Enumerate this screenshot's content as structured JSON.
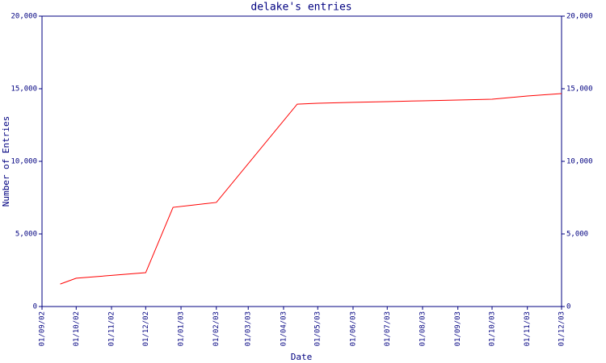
{
  "chart_data": {
    "type": "line",
    "title": "delake's entries",
    "x_label": "Date",
    "y_label": "Number of Entries",
    "x": [
      "17/09/02",
      "01/10/02",
      "01/12/02",
      "25/12/02",
      "01/02/03",
      "13/04/03",
      "01/05/03",
      "01/06/03",
      "01/07/03",
      "01/08/03",
      "01/09/03",
      "01/10/03",
      "01/11/03",
      "01/12/03"
    ],
    "series": [
      {
        "name": "Entries",
        "color": "#ff0000",
        "values": [
          1550,
          1950,
          2330,
          6830,
          7170,
          13940,
          14000,
          14060,
          14110,
          14170,
          14220,
          14280,
          14500,
          14670
        ]
      }
    ],
    "xlim": [
      "01/09/02",
      "01/12/03"
    ],
    "xticks": [
      "01/09/02",
      "01/10/02",
      "01/11/02",
      "01/12/02",
      "01/01/03",
      "01/02/03",
      "01/03/03",
      "01/04/03",
      "01/05/03",
      "01/06/03",
      "01/07/03",
      "01/08/03",
      "01/09/03",
      "01/10/03",
      "01/11/03",
      "01/12/03"
    ],
    "ylim": [
      0,
      20000
    ],
    "yticks": [
      0,
      {
        "value": 5000,
        "label": "5,000"
      },
      {
        "value": 10000,
        "label": "10,000"
      },
      {
        "value": 15000,
        "label": "15,000"
      },
      {
        "value": 20000,
        "label": "20,000"
      }
    ],
    "grid": false
  }
}
